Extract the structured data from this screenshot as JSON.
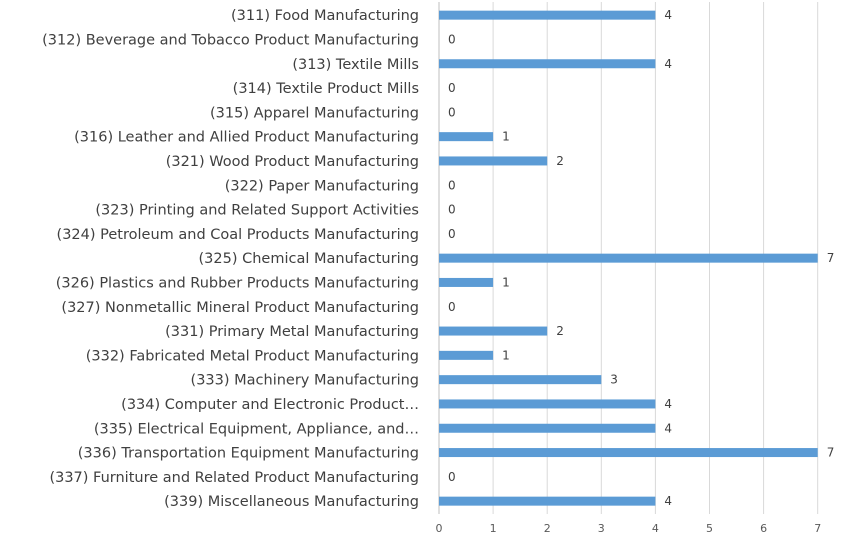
{
  "chart_data": {
    "type": "bar",
    "orientation": "horizontal",
    "categories": [
      "(311) Food Manufacturing",
      "(312) Beverage and Tobacco Product Manufacturing",
      "(313) Textile Mills",
      "(314) Textile Product Mills",
      "(315) Apparel Manufacturing",
      "(316) Leather and Allied Product Manufacturing",
      "(321) Wood Product Manufacturing",
      "(322) Paper Manufacturing",
      "(323) Printing and Related Support Activities",
      "(324) Petroleum and Coal Products Manufacturing",
      "(325) Chemical Manufacturing",
      "(326) Plastics and Rubber Products Manufacturing",
      "(327) Nonmetallic Mineral Product Manufacturing",
      "(331) Primary Metal Manufacturing",
      "(332) Fabricated Metal Product Manufacturing",
      "(333) Machinery Manufacturing",
      "(334) Computer and Electronic Product…",
      "(335) Electrical Equipment, Appliance, and…",
      "(336) Transportation Equipment Manufacturing",
      "(337) Furniture and Related Product Manufacturing",
      "(339) Miscellaneous Manufacturing"
    ],
    "values": [
      4,
      0,
      4,
      0,
      0,
      1,
      2,
      0,
      0,
      0,
      7,
      1,
      0,
      2,
      1,
      3,
      4,
      4,
      7,
      0,
      4
    ],
    "xlim": [
      0,
      7
    ],
    "xticks": [
      "0",
      "1",
      "2",
      "3",
      "4",
      "5",
      "6",
      "7"
    ],
    "title": "",
    "xlabel": "",
    "ylabel": "",
    "grid": true,
    "legend": "none",
    "bar_color": "#5b9bd5"
  }
}
